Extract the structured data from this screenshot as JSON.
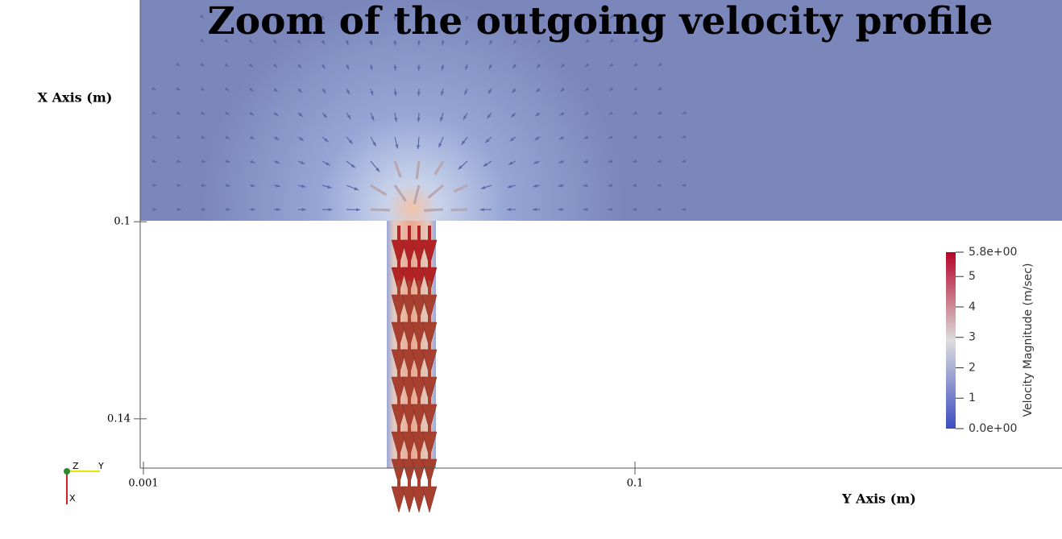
{
  "chart_data": {
    "type": "vector-field",
    "title": "Zoom of the outgoing velocity profile",
    "xlabel": "Y Axis (m)",
    "ylabel": "X Axis (m)",
    "xlim": [
      0.001,
      0.186
    ],
    "xticks": [
      0.001,
      0.1
    ],
    "ylim": [
      0.15,
      0.055
    ],
    "yticks": [
      0.1,
      0.14
    ],
    "colorbar": {
      "label": "Velocity Magnitude (m/sec)",
      "lim": [
        0,
        5.8
      ],
      "colors": [
        "#3b4cc0",
        "#dddddd",
        "#b40426"
      ],
      "ticks": [
        {
          "value": 0,
          "label": "0.0e+00"
        },
        1,
        2,
        3,
        4,
        5,
        {
          "value": 5.8,
          "label": "5.8e+00"
        }
      ]
    },
    "orientation_axes": {
      "labels": [
        "Z",
        "Y",
        "X"
      ]
    }
  }
}
